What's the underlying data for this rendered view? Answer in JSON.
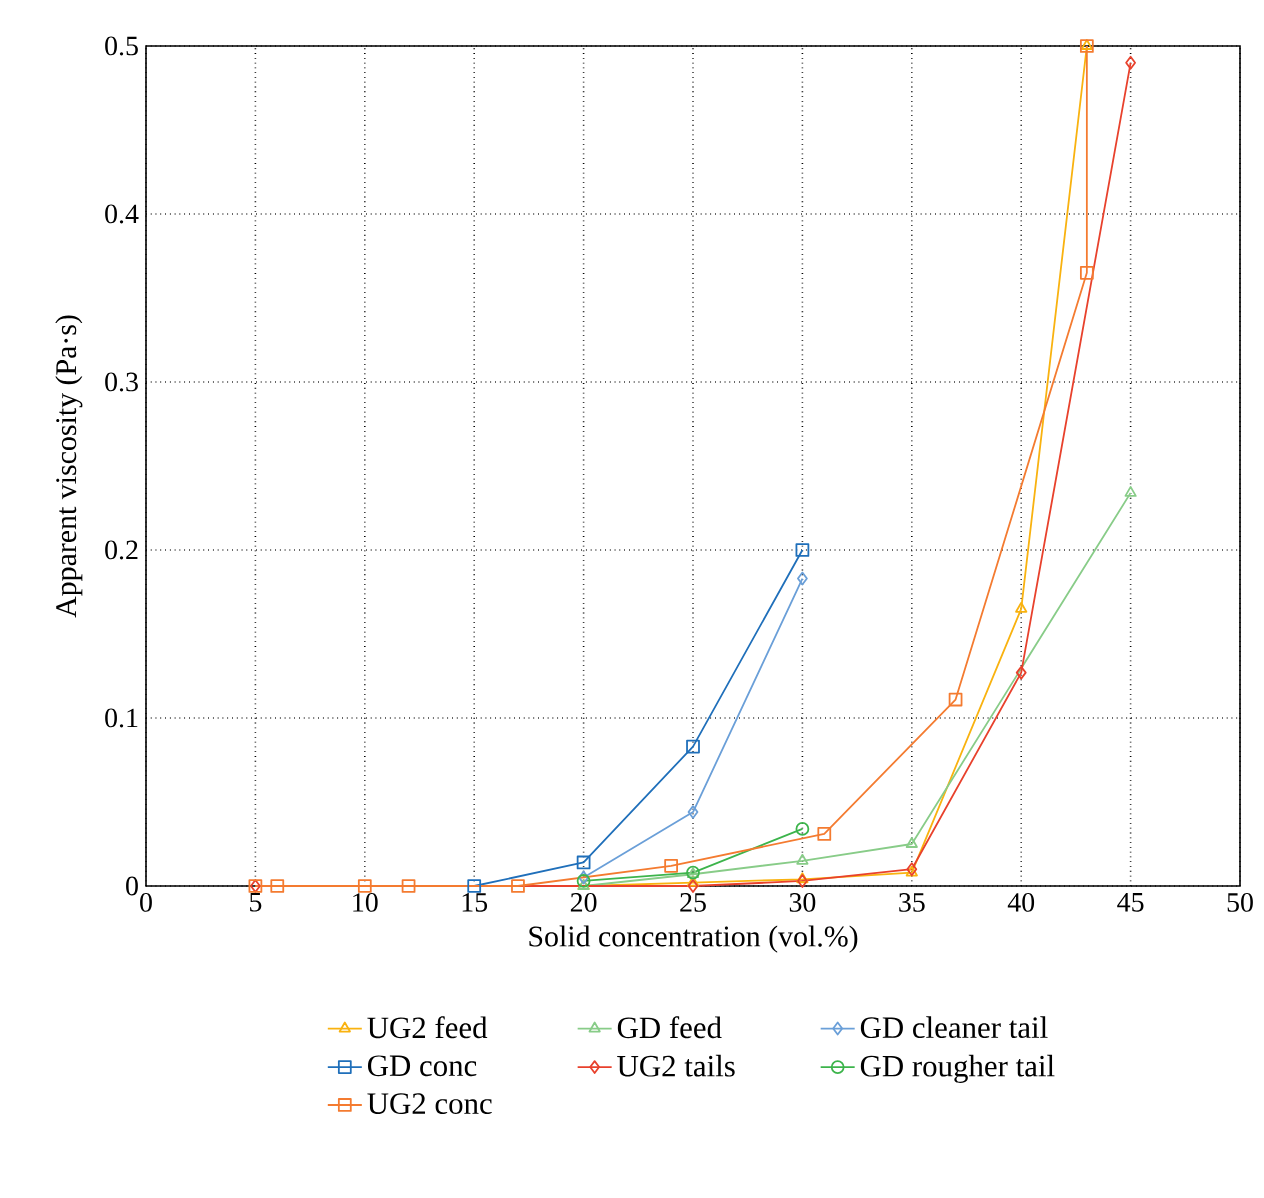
{
  "chart_data": {
    "type": "line",
    "xlabel": "Solid concentration (vol.%)",
    "ylabel": "Apparent viscosity (Pa·s)",
    "xlim": [
      0,
      50
    ],
    "xticks": [
      0,
      5,
      10,
      15,
      20,
      25,
      30,
      35,
      40,
      45,
      50
    ],
    "ylim": [
      0,
      0.5
    ],
    "yticks": [
      0,
      0.1,
      0.2,
      0.3,
      0.4,
      0.5
    ],
    "grid": true,
    "legend": "bottom",
    "series": [
      {
        "name": "UG2 feed",
        "color": "#f9b20f",
        "marker": "triangle",
        "x": [
          20,
          25,
          30,
          35,
          40,
          43
        ],
        "values": [
          0,
          0.002,
          0.004,
          0.008,
          0.165,
          0.5
        ]
      },
      {
        "name": "GD feed",
        "color": "#88cc88",
        "marker": "triangle",
        "x": [
          20,
          25,
          30,
          35,
          45
        ],
        "values": [
          0,
          0.007,
          0.015,
          0.025,
          0.234
        ]
      },
      {
        "name": "GD cleaner tail",
        "color": "#6a9fd8",
        "marker": "diamond",
        "x": [
          20,
          25,
          30
        ],
        "values": [
          0.005,
          0.044,
          0.183
        ]
      },
      {
        "name": "GD conc",
        "color": "#1f6fba",
        "marker": "square",
        "x": [
          15,
          20,
          25,
          30
        ],
        "values": [
          0,
          0.014,
          0.083,
          0.2
        ]
      },
      {
        "name": "UG2 tails",
        "color": "#e8412c",
        "marker": "diamond",
        "x": [
          5,
          25,
          30,
          35,
          40,
          45
        ],
        "values": [
          0,
          0,
          0.003,
          0.01,
          0.127,
          0.49
        ]
      },
      {
        "name": "GD rougher tail",
        "color": "#3cb44b",
        "marker": "circle",
        "x": [
          20,
          25,
          30
        ],
        "values": [
          0.003,
          0.008,
          0.034
        ]
      },
      {
        "name": "UG2 conc",
        "color": "#f47b30",
        "marker": "square",
        "x": [
          5,
          6,
          10,
          12,
          17,
          24,
          31,
          37,
          43,
          43
        ],
        "values": [
          0,
          0,
          0,
          0,
          0,
          0.012,
          0.031,
          0.111,
          0.365,
          0.5
        ]
      }
    ]
  }
}
